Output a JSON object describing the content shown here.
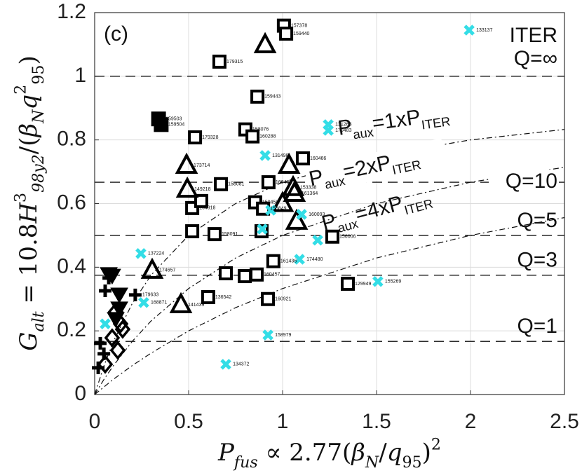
{
  "chart_data": {
    "type": "scatter",
    "panel_label": "(c)",
    "corner_label": "ITER",
    "xlabel": [
      {
        "t": "P",
        "i": true
      },
      {
        "t": "fus",
        "sub": true,
        "i": true
      },
      {
        "t": " ∝ 2.77("
      },
      {
        "t": "β",
        "i": true
      },
      {
        "t": "N",
        "sub": true,
        "i": true
      },
      {
        "t": "/"
      },
      {
        "t": "q",
        "i": true
      },
      {
        "t": "95",
        "sub": true
      },
      {
        "t": ")"
      },
      {
        "t": "2",
        "sup": true
      }
    ],
    "ylabel": [
      {
        "t": "G",
        "i": true
      },
      {
        "t": "alt",
        "sub": true,
        "i": true
      },
      {
        "t": " = 10.8"
      },
      {
        "t": "H",
        "i": true
      },
      {
        "t": "3",
        "sup": true
      },
      {
        "t": "98y2",
        "sub": true,
        "i": true
      },
      {
        "t": "/("
      },
      {
        "t": "β",
        "i": true
      },
      {
        "t": "N",
        "sub": true,
        "i": true
      },
      {
        "t": "q",
        "i": true
      },
      {
        "t": "2",
        "sup": true
      },
      {
        "t": "95",
        "sub": true
      },
      {
        "t": ")"
      }
    ],
    "xlim": [
      0,
      2.5
    ],
    "ylim": [
      0,
      1.2
    ],
    "xticks": [
      0,
      0.5,
      1,
      1.5,
      2,
      2.5
    ],
    "yticks": [
      0,
      0.2,
      0.4,
      0.6,
      0.8,
      1,
      1.2
    ],
    "grid": true,
    "hlines": [
      {
        "value": 1.0,
        "label": "Q=∞"
      },
      {
        "value": 0.667,
        "label": "Q=10"
      },
      {
        "value": 0.5,
        "label": "Q=5"
      },
      {
        "value": 0.375,
        "label": "Q=3"
      },
      {
        "value": 0.167,
        "label": "Q=1"
      }
    ],
    "curves": [
      {
        "x": [
          0,
          0.05,
          0.1,
          0.2,
          0.3,
          0.5,
          0.75,
          1,
          1.5,
          2,
          2.5
        ],
        "y": [
          0,
          0.091,
          0.167,
          0.286,
          0.375,
          0.5,
          0.6,
          0.667,
          0.75,
          0.8,
          0.833
        ],
        "label": [
          {
            "t": "P"
          },
          {
            "t": "aux",
            "sub": true
          },
          {
            "t": "=1xP"
          },
          {
            "t": "ITER",
            "sub": true
          }
        ]
      },
      {
        "x": [
          0,
          0.05,
          0.1,
          0.2,
          0.3,
          0.5,
          0.75,
          1,
          1.5,
          2,
          2.5
        ],
        "y": [
          0,
          0.048,
          0.091,
          0.167,
          0.231,
          0.333,
          0.429,
          0.5,
          0.6,
          0.667,
          0.714
        ],
        "label": [
          {
            "t": "P"
          },
          {
            "t": "aux",
            "sub": true
          },
          {
            "t": "=2xP"
          },
          {
            "t": "ITER",
            "sub": true
          }
        ]
      },
      {
        "x": [
          0,
          0.05,
          0.1,
          0.2,
          0.3,
          0.5,
          0.75,
          1,
          1.5,
          2,
          2.5
        ],
        "y": [
          0,
          0.024,
          0.048,
          0.091,
          0.13,
          0.2,
          0.273,
          0.333,
          0.429,
          0.5,
          0.556
        ],
        "label": [
          {
            "t": "P"
          },
          {
            "t": "aux",
            "sub": true
          },
          {
            "t": "=4xP"
          },
          {
            "t": "ITER",
            "sub": true
          }
        ]
      }
    ],
    "series": [
      {
        "marker": "square",
        "color": "#000000",
        "x": [
          1.007,
          1.019,
          0.664,
          0.866,
          0.802,
          0.84,
          0.534,
          0.925,
          0.672,
          0.854,
          0.896,
          0.519,
          0.567,
          0.519,
          0.638,
          0.888,
          1.265,
          0.951,
          0.698,
          0.799,
          0.862,
          0.604,
          0.922,
          1.347,
          1.108
        ],
        "y": [
          1.159,
          1.134,
          1.046,
          0.936,
          0.833,
          0.811,
          0.808,
          0.667,
          0.661,
          0.604,
          0.584,
          0.586,
          0.608,
          0.513,
          0.504,
          0.513,
          0.496,
          0.419,
          0.381,
          0.372,
          0.377,
          0.306,
          0.3,
          0.348,
          0.742
        ],
        "labels": [
          "157378",
          "159440",
          "179315",
          "159443",
          "158076",
          "160288",
          "179328",
          "166461",
          "158081",
          "150458",
          "156849",
          "164318",
          null,
          null,
          "158091",
          null,
          "156006",
          "161436",
          null,
          null,
          "160457",
          "136542",
          "160921",
          "129949",
          "160466"
        ]
      },
      {
        "marker": "filled-square",
        "color": "#000000",
        "x": [
          0.34,
          0.354
        ],
        "y": [
          0.866,
          0.848
        ],
        "labels": [
          "159503",
          "159504"
        ]
      },
      {
        "marker": "triangle",
        "color": "#000000",
        "x": [
          0.907,
          0.489,
          0.493,
          1.034,
          1.056,
          1.063,
          1.0,
          1.075,
          0.306,
          0.459
        ],
        "y": [
          1.099,
          0.72,
          0.645,
          0.72,
          0.65,
          0.632,
          0.6,
          0.544,
          0.39,
          0.282
        ],
        "labels": [
          null,
          "173714",
          "149218",
          null,
          "153338",
          "161364",
          null,
          null,
          "174657",
          "141439"
        ]
      },
      {
        "marker": "inverted-triangle",
        "color": "#000000",
        "x": [
          0.075,
          0.093,
          0.131,
          0.112,
          0.131
        ],
        "y": [
          0.379,
          0.374,
          0.271,
          0.238,
          0.315
        ],
        "labels": [
          null,
          null,
          null,
          null,
          null
        ]
      },
      {
        "marker": "cross",
        "color": "#000000",
        "x": [
          0.056,
          0.216,
          0.03,
          0.019,
          0.049,
          0.075
        ],
        "y": [
          0.326,
          0.313,
          0.161,
          0.084,
          0.128,
          0.366
        ],
        "labels": [
          null,
          "179633",
          null,
          null,
          null,
          null
        ]
      },
      {
        "marker": "diamond",
        "color": "#000000",
        "x": [
          0.138,
          0.093,
          0.123,
          0.056,
          0.112,
          0.149
        ],
        "y": [
          0.222,
          0.178,
          0.139,
          0.095,
          0.26,
          0.205
        ],
        "labels": [
          null,
          null,
          null,
          null,
          null,
          null
        ]
      },
      {
        "marker": "x",
        "color": "#33dde6",
        "x": [
          1.993,
          1.243,
          1.243,
          0.907,
          0.937,
          0.892,
          1.101,
          1.187,
          1.09,
          1.507,
          0.261,
          0.246,
          0.056,
          0.922,
          0.698
        ],
        "y": [
          1.145,
          0.848,
          0.83,
          0.751,
          0.579,
          0.52,
          0.566,
          0.485,
          0.425,
          0.355,
          0.289,
          0.443,
          0.222,
          0.187,
          0.095
        ],
        "labels": [
          "133137",
          "131265",
          "170483",
          "131498",
          null,
          null,
          "160093",
          null,
          "174480",
          "155269",
          "168871",
          "137224",
          null,
          "158979",
          "134372"
        ]
      }
    ]
  }
}
